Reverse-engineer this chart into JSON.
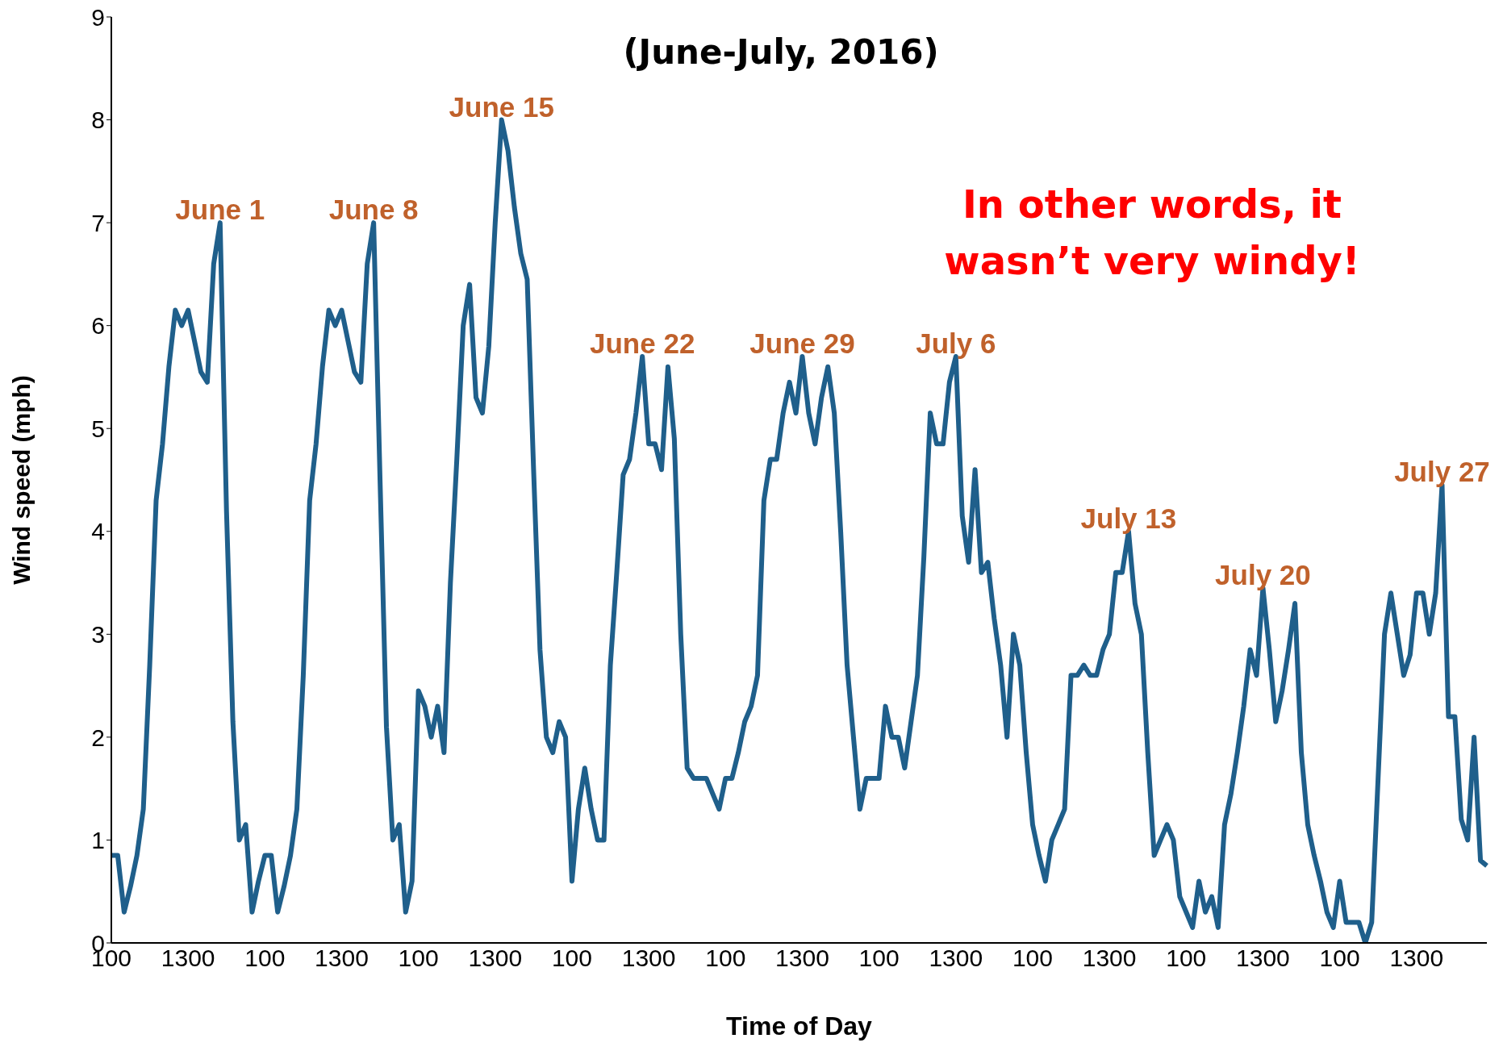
{
  "chart_data": {
    "type": "line",
    "subtitle": "(June-July, 2016)",
    "xlabel": "Time of Day",
    "ylabel": "Wind speed (mph)",
    "categories": [
      "100",
      null,
      null,
      null,
      null,
      null,
      null,
      null,
      null,
      null,
      null,
      null,
      "1300",
      null,
      null,
      null,
      null,
      null,
      null,
      null,
      null,
      null,
      null,
      null,
      "100",
      null,
      null,
      null,
      null,
      null,
      null,
      null,
      null,
      null,
      null,
      null,
      "1300",
      null,
      null,
      null,
      null,
      null,
      null,
      null,
      null,
      null,
      null,
      null,
      "100",
      null,
      null,
      null,
      null,
      null,
      null,
      null,
      null,
      null,
      null,
      null,
      "1300",
      null,
      null,
      null,
      null,
      null,
      null,
      null,
      null,
      null,
      null,
      null,
      "100",
      null,
      null,
      null,
      null,
      null,
      null,
      null,
      null,
      null,
      null,
      null,
      "1300",
      null,
      null,
      null,
      null,
      null,
      null,
      null,
      null,
      null,
      null,
      null,
      "100",
      null,
      null,
      null,
      null,
      null,
      null,
      null,
      null,
      null,
      null,
      null,
      "1300",
      null,
      null,
      null,
      null,
      null,
      null,
      null,
      null,
      null,
      null,
      null,
      "100",
      null,
      null,
      null,
      null,
      null,
      null,
      null,
      null,
      null,
      null,
      null,
      "1300",
      null,
      null,
      null,
      null,
      null,
      null,
      null,
      null,
      null,
      null,
      null,
      "100",
      null,
      null,
      null,
      null,
      null,
      null,
      null,
      null,
      null,
      null,
      null,
      "1300",
      null,
      null,
      null,
      null,
      null,
      null,
      null,
      null,
      null,
      null,
      null,
      "100",
      null,
      null,
      null,
      null,
      null,
      null,
      null,
      null,
      null,
      null,
      null,
      "1300",
      null,
      null,
      null,
      null,
      null,
      null,
      null,
      null,
      null,
      null,
      null,
      "100",
      null,
      null,
      null,
      null,
      null,
      null,
      null,
      null,
      null,
      null,
      null,
      "1300",
      null,
      null,
      null,
      null,
      null,
      null,
      null,
      null,
      null,
      null,
      null
    ],
    "series": [
      {
        "color": "#1f5f8b",
        "values": [
          0.85,
          0.85,
          0.3,
          0.55,
          0.85,
          1.3,
          2.7,
          4.3,
          4.85,
          5.6,
          6.15,
          6.0,
          6.15,
          5.85,
          5.55,
          5.45,
          6.6,
          7.0,
          4.2,
          2.15,
          1.0,
          1.15,
          0.3,
          0.6,
          0.85,
          0.85,
          0.3,
          0.55,
          0.85,
          1.3,
          2.6,
          4.3,
          4.85,
          5.6,
          6.15,
          6.0,
          6.15,
          5.85,
          5.55,
          5.45,
          6.6,
          7.0,
          4.5,
          2.1,
          1.0,
          1.15,
          0.3,
          0.6,
          2.45,
          2.3,
          2.0,
          2.3,
          1.85,
          3.5,
          4.7,
          6.0,
          6.4,
          5.3,
          5.15,
          5.8,
          7.0,
          8.0,
          7.7,
          7.15,
          6.7,
          6.45,
          4.6,
          2.85,
          2.0,
          1.85,
          2.15,
          2.0,
          0.6,
          1.3,
          1.7,
          1.3,
          1.0,
          1.0,
          2.7,
          3.6,
          4.55,
          4.7,
          5.15,
          5.7,
          4.85,
          4.85,
          4.6,
          5.6,
          4.9,
          3.0,
          1.7,
          1.6,
          1.6,
          1.6,
          1.45,
          1.3,
          1.6,
          1.6,
          1.85,
          2.15,
          2.3,
          2.6,
          4.3,
          4.7,
          4.7,
          5.15,
          5.45,
          5.15,
          5.7,
          5.15,
          4.85,
          5.3,
          5.6,
          5.15,
          4.0,
          2.7,
          2.0,
          1.3,
          1.6,
          1.6,
          1.6,
          2.3,
          2.0,
          2.0,
          1.7,
          2.15,
          2.6,
          3.75,
          5.15,
          4.85,
          4.85,
          5.45,
          5.7,
          4.15,
          3.7,
          4.6,
          3.6,
          3.7,
          3.15,
          2.7,
          2.0,
          3.0,
          2.7,
          1.85,
          1.15,
          0.85,
          0.6,
          1.0,
          1.15,
          1.3,
          2.6,
          2.6,
          2.7,
          2.6,
          2.6,
          2.85,
          3.0,
          3.6,
          3.6,
          4.0,
          3.3,
          3.0,
          1.85,
          0.85,
          1.0,
          1.15,
          1.0,
          0.45,
          0.3,
          0.15,
          0.6,
          0.3,
          0.45,
          0.15,
          1.15,
          1.45,
          1.85,
          2.3,
          2.85,
          2.6,
          3.45,
          2.85,
          2.15,
          2.45,
          2.85,
          3.3,
          1.85,
          1.15,
          0.85,
          0.6,
          0.3,
          0.15,
          0.6,
          0.2,
          0.2,
          0.2,
          0.0,
          0.2,
          1.6,
          3.0,
          3.4,
          3.0,
          2.6,
          2.8,
          3.4,
          3.4,
          3.0,
          3.4,
          4.45,
          2.2,
          2.2,
          1.2,
          1.0,
          2.0,
          0.8,
          0.75
        ]
      }
    ],
    "ylim": [
      0,
      9
    ],
    "yticks": [
      0,
      1,
      2,
      3,
      4,
      5,
      6,
      7,
      8,
      9
    ],
    "grid": false,
    "legend": false,
    "marker": "none",
    "line_style": "solid",
    "annotations": [
      {
        "text": "June 1",
        "y": 7.0
      },
      {
        "text": "June 8",
        "y": 7.0
      },
      {
        "text": "June 15",
        "y": 8.0
      },
      {
        "text": "June 22",
        "y": 5.7
      },
      {
        "text": "June 29",
        "y": 5.7
      },
      {
        "text": "July 6",
        "y": 5.7
      },
      {
        "text": "July 13",
        "y": 4.0
      },
      {
        "text": "July 20",
        "y": 3.45
      },
      {
        "text": "July 27",
        "y": 4.45
      },
      "In other words, it wasn’t very windy!"
    ]
  }
}
